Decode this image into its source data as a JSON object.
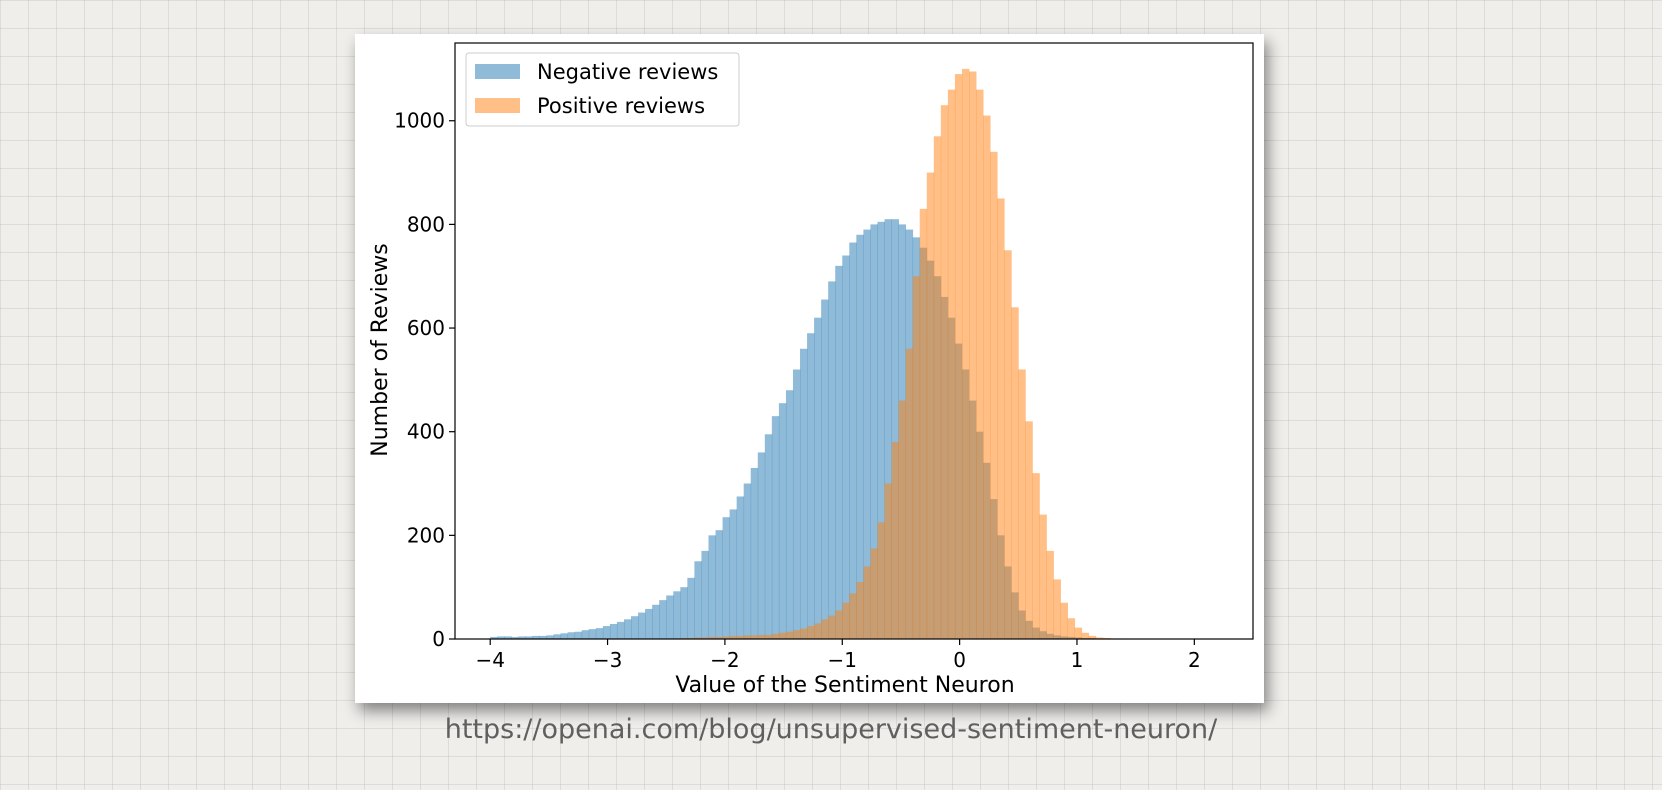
{
  "chart_data": {
    "type": "histogram",
    "xlabel": "Value of the Sentiment Neuron",
    "ylabel": "Number of Reviews",
    "xlim": [
      -4.3,
      2.5
    ],
    "ylim": [
      0,
      1150
    ],
    "xticks": [
      -4,
      -3,
      -2,
      -1,
      0,
      1,
      2
    ],
    "xtick_labels": [
      "−4",
      "−3",
      "−2",
      "−1",
      "0",
      "1",
      "2"
    ],
    "yticks": [
      0,
      200,
      400,
      600,
      800,
      1000
    ],
    "ytick_labels": [
      "0",
      "200",
      "400",
      "600",
      "800",
      "1000"
    ],
    "grid": false,
    "legend_position": "top-left",
    "bin_width": 0.06,
    "series": [
      {
        "name": "Negative reviews",
        "color": "#1f77b4",
        "opacity": 0.5,
        "bin_start": -4.0,
        "values": [
          4,
          5,
          5,
          4,
          5,
          5,
          6,
          6,
          7,
          9,
          11,
          13,
          14,
          17,
          19,
          21,
          25,
          29,
          33,
          38,
          44,
          51,
          58,
          66,
          75,
          84,
          92,
          100,
          118,
          150,
          170,
          200,
          210,
          235,
          250,
          275,
          300,
          330,
          360,
          395,
          430,
          455,
          480,
          520,
          560,
          590,
          620,
          655,
          690,
          720,
          740,
          765,
          780,
          790,
          800,
          805,
          810,
          810,
          800,
          790,
          775,
          755,
          730,
          700,
          660,
          620,
          570,
          520,
          460,
          400,
          340,
          270,
          200,
          140,
          90,
          55,
          35,
          22,
          15,
          10,
          7,
          5,
          4,
          3,
          2,
          2,
          1,
          1
        ]
      },
      {
        "name": "Positive reviews",
        "color": "#ff7f0e",
        "opacity": 0.5,
        "bin_start": -2.5,
        "values": [
          1,
          1,
          2,
          2,
          3,
          3,
          4,
          4,
          5,
          6,
          6,
          7,
          7,
          8,
          8,
          10,
          12,
          14,
          17,
          20,
          25,
          30,
          38,
          45,
          55,
          70,
          88,
          110,
          140,
          175,
          225,
          300,
          380,
          460,
          560,
          700,
          830,
          900,
          970,
          1030,
          1060,
          1090,
          1100,
          1095,
          1060,
          1010,
          940,
          850,
          750,
          640,
          520,
          420,
          320,
          240,
          170,
          115,
          70,
          40,
          22,
          12,
          6,
          3,
          2,
          1,
          1
        ]
      }
    ]
  },
  "caption": {
    "url": "https://openai.com/blog/unsupervised-sentiment-neuron/"
  }
}
